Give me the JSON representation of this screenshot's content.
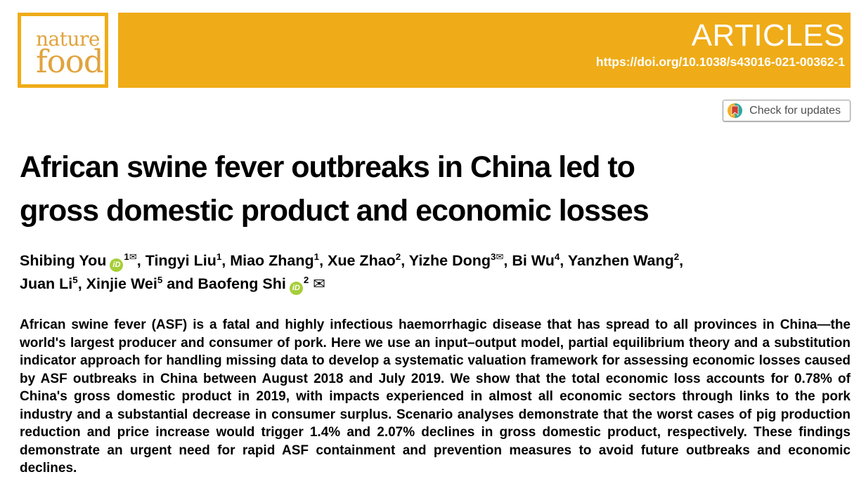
{
  "masthead": {
    "journal_line1": "nature",
    "journal_line2": "food",
    "section_label": "ARTICLES",
    "doi": "https://doi.org/10.1038/s43016-021-00362-1"
  },
  "check_for_updates": {
    "label": "Check for updates"
  },
  "article": {
    "title_line1": "African swine fever outbreaks in China led to",
    "title_line2": "gross domestic product and economic losses",
    "and_word": "and",
    "author_lines": [
      [
        {
          "name": "Shibing You",
          "orcid": true,
          "affiliation": "1",
          "email": true
        },
        {
          "name": "Tingyi Liu",
          "affiliation": "1"
        },
        {
          "name": "Miao Zhang",
          "affiliation": "1"
        },
        {
          "name": "Xue Zhao",
          "affiliation": "2"
        },
        {
          "name": "Yizhe Dong",
          "affiliation": "3",
          "email": true
        },
        {
          "name": "Bi Wu",
          "affiliation": "4"
        },
        {
          "name": "Yanzhen Wang",
          "affiliation": "2"
        }
      ],
      [
        {
          "name": "Juan Li",
          "affiliation": "5"
        },
        {
          "name": "Xinjie Wei",
          "affiliation": "5"
        },
        {
          "name": "Baofeng Shi",
          "orcid": true,
          "affiliation": "2",
          "email": "inline"
        }
      ]
    ],
    "abstract": "African swine fever (ASF) is a fatal and highly infectious haemorrhagic disease that has spread to all provinces in China—the world's largest producer and consumer of pork. Here we use an input–output model, partial equilibrium theory and a substitution indicator approach for handling missing data to develop a systematic valuation framework for assessing economic losses caused by ASF outbreaks in China between August 2018 and July 2019. We show that the total economic loss accounts for 0.78% of China's gross domestic product in 2019, with impacts experienced in almost all economic sectors through links to the pork industry and a substantial decrease in consumer surplus. Scenario analyses demonstrate that the worst cases of pig production reduction and price increase would trigger 1.4% and 2.07% declines in gross domestic product, respectively. These findings demonstrate an urgent need for rapid ASF containment and prevention measures to avoid future outbreaks and economic declines."
  },
  "icons": {
    "orcid_label": "iD",
    "envelope_glyph": "✉"
  },
  "colors": {
    "banner_orange": "#EFAC18",
    "logo_text_orange": "#E1A33D",
    "orcid_green": "#A6CE39",
    "crossmark_yellow": "#F3B127",
    "crossmark_teal": "#31A89F",
    "crossmark_red": "#CF3D32",
    "check_text_gray": "#4f4f4f",
    "text_black": "#000000"
  }
}
